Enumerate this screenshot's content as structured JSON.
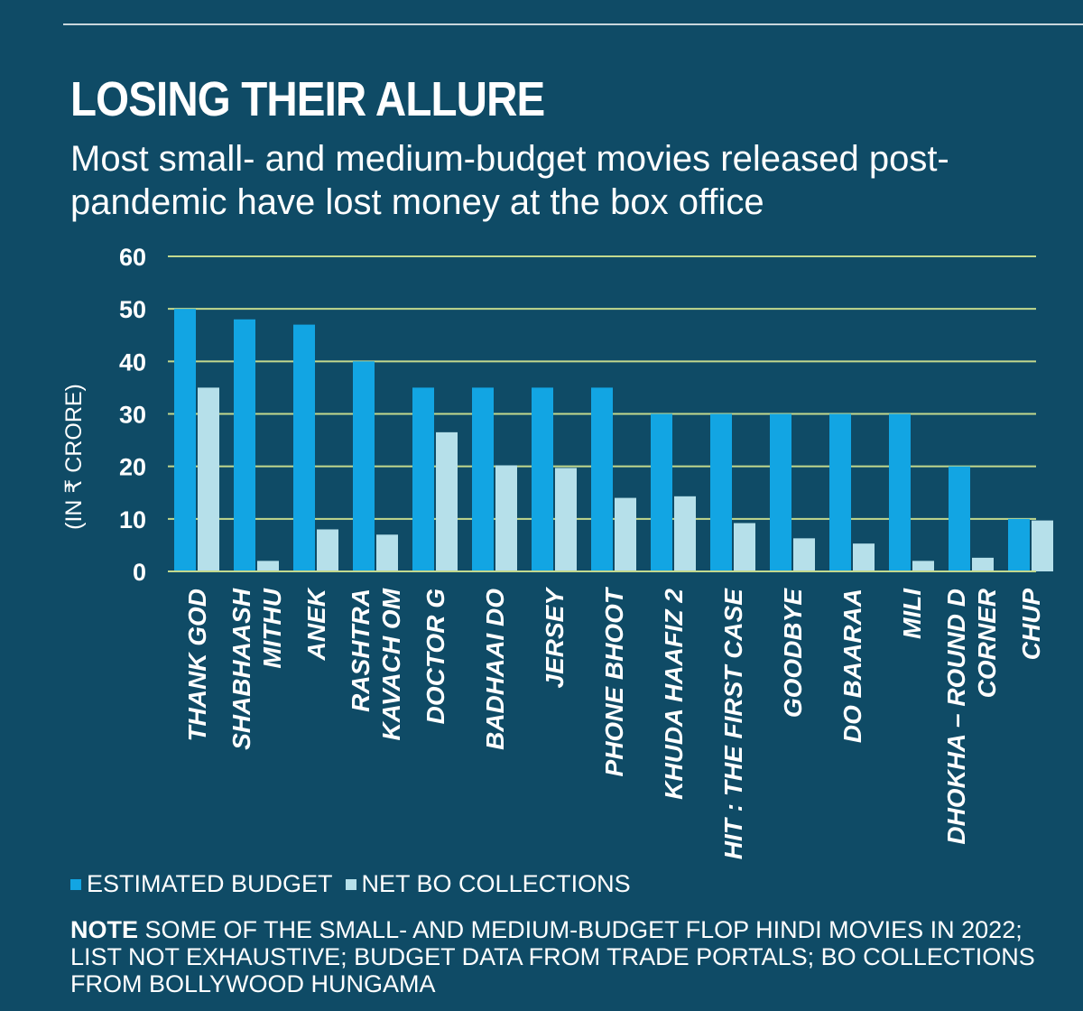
{
  "title": "LOSING THEIR ALLURE",
  "subtitle": "Most small- and medium-budget movies released post-pandemic have lost money at the box office",
  "note_label": "NOTE",
  "note_text": " SOME OF THE SMALL- AND MEDIUM-BUDGET FLOP HINDI MOVIES IN 2022; LIST NOT EXHAUSTIVE; BUDGET DATA FROM TRADE PORTALS; BO COLLECTIONS FROM BOLLYWOOD HUNGAMA",
  "colors": {
    "background": "#0f4b66",
    "budget": "#12a5e3",
    "collections": "#b6e0ea",
    "gridline": "#c3d98e"
  },
  "chart_data": {
    "type": "bar",
    "ylabel": "(IN ₹ CRORE)",
    "xlabel": "",
    "ylim": [
      0,
      60
    ],
    "yticks": [
      0,
      10,
      20,
      30,
      40,
      50,
      60
    ],
    "grid": true,
    "legend_position": "bottom-left",
    "categories": [
      [
        "THANK GOD"
      ],
      [
        "SHABHAASH",
        "MITHU"
      ],
      [
        "ANEK"
      ],
      [
        "RASHTRA",
        "KAVACH OM"
      ],
      [
        "DOCTOR G"
      ],
      [
        "BADHAAI DO"
      ],
      [
        "JERSEY"
      ],
      [
        "PHONE BHOOT"
      ],
      [
        "KHUDA HAAFIZ 2"
      ],
      [
        "HIT : THE FIRST CASE"
      ],
      [
        "GOODBYE"
      ],
      [
        "DO BAARAA"
      ],
      [
        "MILI"
      ],
      [
        "DHOKHA – ROUND D",
        "CORNER"
      ],
      [
        "CHUP"
      ]
    ],
    "series": [
      {
        "name": "ESTIMATED BUDGET",
        "values": [
          50,
          48,
          47,
          40,
          35,
          35,
          35,
          35,
          30,
          30,
          30,
          30,
          30,
          20,
          10
        ]
      },
      {
        "name": "NET BO COLLECTIONS",
        "values": [
          35,
          2,
          8,
          7,
          26.5,
          20.2,
          19.7,
          14,
          14.3,
          9.2,
          6.3,
          5.3,
          2,
          2.6,
          9.7
        ]
      }
    ]
  }
}
